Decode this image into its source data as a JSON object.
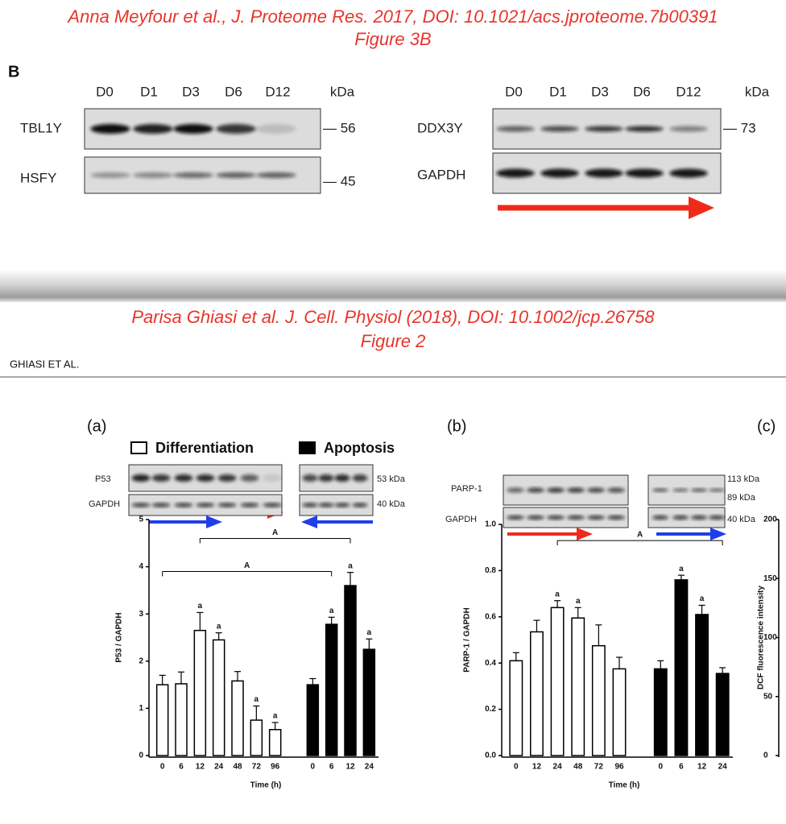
{
  "top": {
    "citation": "Anna Meyfour et al., J. Proteome Res. 2017, DOI: 10.1021/acs.jproteome.7b00391",
    "figure": "Figure 3B",
    "panel": "B",
    "left": {
      "lanes": [
        "D0",
        "D1",
        "D3",
        "D6",
        "D12"
      ],
      "unit": "kDa",
      "rows": [
        {
          "name": "TBL1Y",
          "size": "— 56"
        },
        {
          "name": "HSFY",
          "size": "— 45"
        }
      ]
    },
    "right": {
      "lanes": [
        "D0",
        "D1",
        "D3",
        "D6",
        "D12"
      ],
      "unit": "kDa",
      "rows": [
        {
          "name": "DDX3Y",
          "size": "— 73"
        },
        {
          "name": "GAPDH"
        }
      ]
    }
  },
  "bottom": {
    "citation": "Parisa Ghiasi et al. J. Cell. Physiol (2018), DOI:  10.1002/jcp.26758",
    "figure": "Figure 2",
    "running_head": "GHIASI ET AL.",
    "blots_a": [
      {
        "name": "P53",
        "size": "53 kDa"
      },
      {
        "name": "GAPDH",
        "size": "40 kDa"
      }
    ],
    "blots_b": [
      {
        "name": "PARP-1",
        "sizes": [
          "113 kDa",
          "89 kDa"
        ]
      },
      {
        "name": "GAPDH",
        "sizes": [
          "40 kDa"
        ]
      }
    ]
  },
  "chart_data": [
    {
      "type": "bar",
      "panel": "(a)",
      "ylabel": "P53 / GAPDH",
      "xlabel": "Time (h)",
      "categories": [
        "0",
        "6",
        "12",
        "24",
        "48",
        "72",
        "96",
        null,
        "0",
        "6",
        "12",
        "24"
      ],
      "series": [
        {
          "name": "Differentiation",
          "color": "#ffffff",
          "values": [
            1.5,
            1.52,
            2.65,
            2.45,
            1.58,
            0.75,
            0.55,
            null,
            null,
            null,
            null,
            null
          ],
          "errors": [
            0.2,
            0.25,
            0.38,
            0.15,
            0.2,
            0.3,
            0.15,
            null,
            null,
            null,
            null,
            null
          ],
          "significance": [
            null,
            null,
            "a",
            "a",
            null,
            "a",
            "a",
            null,
            null,
            null,
            null,
            null
          ]
        },
        {
          "name": "Apoptosis",
          "color": "#000000",
          "values": [
            null,
            null,
            null,
            null,
            null,
            null,
            null,
            null,
            1.5,
            2.78,
            3.6,
            2.25
          ],
          "errors": [
            null,
            null,
            null,
            null,
            null,
            null,
            null,
            null,
            0.13,
            0.15,
            0.28,
            0.22
          ],
          "significance": [
            null,
            null,
            null,
            null,
            null,
            null,
            null,
            null,
            null,
            "a",
            "a",
            "a"
          ]
        }
      ],
      "brackets": [
        {
          "label": "A",
          "from": 2,
          "to": 10,
          "y": 4.6
        },
        {
          "label": "A",
          "from": 0,
          "to": 9,
          "y": 3.9
        }
      ],
      "ylim": [
        0,
        5
      ],
      "yticks": [
        0,
        1,
        2,
        3,
        4,
        5
      ]
    },
    {
      "type": "bar",
      "panel": "(b)",
      "ylabel": "PARP-1 / GAPDH",
      "xlabel": "Time (h)",
      "categories": [
        "0",
        "12",
        "24",
        "48",
        "72",
        "96",
        null,
        "0",
        "6",
        "12",
        "24"
      ],
      "series": [
        {
          "color": "#ffffff",
          "values": [
            0.41,
            0.535,
            0.64,
            0.595,
            0.475,
            0.375,
            null,
            null,
            null,
            null,
            null
          ],
          "errors": [
            0.035,
            0.05,
            0.03,
            0.045,
            0.09,
            0.05,
            null,
            null,
            null,
            null,
            null
          ],
          "significance": [
            null,
            null,
            "a",
            "a",
            null,
            null,
            null,
            null,
            null,
            null,
            null
          ]
        },
        {
          "color": "#000000",
          "values": [
            null,
            null,
            null,
            null,
            null,
            null,
            null,
            0.375,
            0.76,
            0.61,
            0.355
          ],
          "errors": [
            null,
            null,
            null,
            null,
            null,
            null,
            null,
            0.035,
            0.02,
            0.04,
            0.025
          ],
          "significance": [
            null,
            null,
            null,
            null,
            null,
            null,
            null,
            null,
            "a",
            "a",
            null
          ]
        }
      ],
      "brackets": [
        {
          "label": "A",
          "from": 2,
          "to": 10,
          "y": 0.93
        }
      ],
      "ylim": [
        0,
        1
      ],
      "yticks": [
        {
          "value": 0,
          "label": "0.0"
        },
        0.2,
        0.4,
        0.6,
        0.8,
        {
          "value": 1,
          "label": "1.0"
        }
      ]
    },
    {
      "type": "bar",
      "panel": "(c)",
      "ylabel": "DCF fluorescence intensity",
      "ylim": [
        0,
        200
      ],
      "yticks": [
        0,
        50,
        100,
        150,
        200
      ]
    }
  ]
}
